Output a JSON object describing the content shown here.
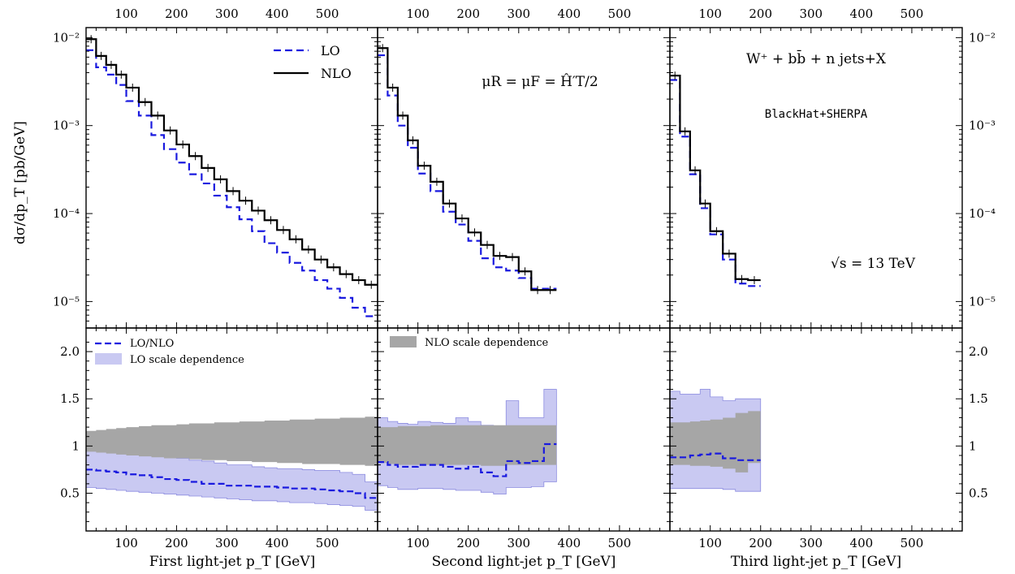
{
  "colors": {
    "lo": "#1a1adf",
    "nlo": "#000000",
    "lo_band": "#c9c9f2",
    "lo_band_edge": "#8c8ce0",
    "nlo_band": "#a6a6a6"
  },
  "annotations": {
    "process": "W⁺ + bb̄ + n jets+X",
    "scale": "μR = μF = Ĥ′T/2",
    "program": "BlackHat+SHERPA",
    "energy": "√s = 13 TeV"
  },
  "top_legend": {
    "lo": "LO",
    "nlo": "NLO"
  },
  "ratio_legend": {
    "lo_nlo": "LO/NLO",
    "lo_band": "LO scale dependence",
    "nlo_band": "NLO scale dependence"
  },
  "chart_data": [
    {
      "type": "line",
      "step": true,
      "xlabel": "First light-jet p_T [GeV]",
      "ylabel": "dσ/dp_T [pb/GeV]",
      "xlim": [
        20,
        600
      ],
      "ylim": [
        5e-06,
        0.013
      ],
      "yscale": "log",
      "x_ticks": [
        100,
        200,
        300,
        400,
        500
      ],
      "y_ticks": [
        "10⁻²",
        "10⁻³",
        "10⁻⁴",
        "10⁻⁵"
      ],
      "bin_edges": [
        20,
        40,
        60,
        80,
        100,
        125,
        150,
        175,
        200,
        225,
        250,
        275,
        300,
        325,
        350,
        375,
        400,
        425,
        450,
        475,
        500,
        525,
        550,
        575,
        600
      ],
      "series": [
        {
          "name": "LO",
          "style": "dashed",
          "values": [
            0.0072,
            0.0046,
            0.0038,
            0.0029,
            0.0019,
            0.0013,
            0.00078,
            0.00054,
            0.00038,
            0.00028,
            0.00022,
            0.00016,
            0.000118,
            8.6e-05,
            6.3e-05,
            4.6e-05,
            3.6e-05,
            2.75e-05,
            2.25e-05,
            1.75e-05,
            1.4e-05,
            1.1e-05,
            8.5e-06,
            6.8e-06
          ]
        },
        {
          "name": "NLO",
          "style": "solid",
          "values": [
            0.0096,
            0.0062,
            0.0049,
            0.0038,
            0.0027,
            0.00185,
            0.0013,
            0.00088,
            0.00061,
            0.00045,
            0.00033,
            0.000245,
            0.00018,
            0.00014,
            0.000108,
            8.4e-05,
            6.5e-05,
            5.1e-05,
            3.9e-05,
            3e-05,
            2.45e-05,
            2.05e-05,
            1.75e-05,
            1.55e-05
          ]
        }
      ],
      "ratio": {
        "ylim": [
          0.1,
          2.25
        ],
        "y_ticks": [
          0.5,
          1,
          1.5,
          2.0
        ],
        "lo_nlo": [
          0.75,
          0.74,
          0.73,
          0.72,
          0.7,
          0.69,
          0.67,
          0.65,
          0.64,
          0.62,
          0.6,
          0.6,
          0.58,
          0.58,
          0.57,
          0.57,
          0.56,
          0.55,
          0.55,
          0.54,
          0.53,
          0.52,
          0.5,
          0.45
        ],
        "lo_band_low": [
          0.56,
          0.55,
          0.54,
          0.53,
          0.52,
          0.51,
          0.5,
          0.49,
          0.48,
          0.47,
          0.46,
          0.45,
          0.44,
          0.43,
          0.42,
          0.42,
          0.41,
          0.4,
          0.4,
          0.39,
          0.38,
          0.37,
          0.36,
          0.32
        ],
        "lo_band_high": [
          1.04,
          1.02,
          1.0,
          0.99,
          0.96,
          0.94,
          0.92,
          0.89,
          0.87,
          0.85,
          0.84,
          0.82,
          0.8,
          0.8,
          0.78,
          0.77,
          0.76,
          0.76,
          0.75,
          0.74,
          0.74,
          0.72,
          0.7,
          0.62
        ],
        "nlo_band_low": [
          0.94,
          0.93,
          0.92,
          0.91,
          0.9,
          0.89,
          0.88,
          0.87,
          0.87,
          0.86,
          0.85,
          0.85,
          0.84,
          0.84,
          0.83,
          0.83,
          0.82,
          0.82,
          0.81,
          0.81,
          0.81,
          0.8,
          0.8,
          0.79
        ],
        "nlo_band_high": [
          1.16,
          1.17,
          1.18,
          1.19,
          1.2,
          1.21,
          1.22,
          1.22,
          1.23,
          1.24,
          1.24,
          1.25,
          1.25,
          1.26,
          1.26,
          1.27,
          1.27,
          1.28,
          1.28,
          1.29,
          1.29,
          1.3,
          1.3,
          1.31
        ]
      }
    },
    {
      "type": "line",
      "step": true,
      "xlabel": "Second light-jet p_T [GeV]",
      "xlim": [
        20,
        600
      ],
      "ylim": [
        5e-06,
        0.013
      ],
      "yscale": "log",
      "x_ticks": [
        100,
        200,
        300,
        400,
        500
      ],
      "bin_edges": [
        20,
        40,
        60,
        80,
        100,
        125,
        150,
        175,
        200,
        225,
        250,
        275,
        300,
        325,
        350,
        375
      ],
      "series": [
        {
          "name": "LO",
          "style": "dashed",
          "values": [
            0.0063,
            0.0022,
            0.001,
            0.00056,
            0.000285,
            0.00018,
            0.000105,
            7.5e-05,
            4.9e-05,
            3.1e-05,
            2.45e-05,
            2.25e-05,
            1.85e-05,
            1.4e-05,
            1.4e-05
          ]
        },
        {
          "name": "NLO",
          "style": "solid",
          "values": [
            0.0076,
            0.0027,
            0.0013,
            0.00068,
            0.00035,
            0.00023,
            0.00013,
            8.8e-05,
            6.1e-05,
            4.4e-05,
            3.3e-05,
            3.2e-05,
            2.2e-05,
            1.35e-05,
            1.35e-05
          ]
        }
      ],
      "ratio": {
        "lo_nlo": [
          0.83,
          0.8,
          0.78,
          0.78,
          0.8,
          0.8,
          0.78,
          0.76,
          0.78,
          0.72,
          0.68,
          0.84,
          0.82,
          0.84,
          1.02
        ],
        "lo_band_low": [
          0.58,
          0.56,
          0.54,
          0.54,
          0.55,
          0.55,
          0.54,
          0.53,
          0.53,
          0.51,
          0.49,
          0.56,
          0.56,
          0.57,
          0.62
        ],
        "lo_band_high": [
          1.3,
          1.26,
          1.24,
          1.23,
          1.26,
          1.25,
          1.24,
          1.3,
          1.26,
          1.22,
          1.18,
          1.48,
          1.3,
          1.3,
          1.6
        ],
        "nlo_band_low": [
          0.82,
          0.81,
          0.8,
          0.8,
          0.8,
          0.8,
          0.8,
          0.8,
          0.8,
          0.79,
          0.79,
          0.8,
          0.8,
          0.8,
          0.8
        ],
        "nlo_band_high": [
          1.2,
          1.2,
          1.21,
          1.21,
          1.21,
          1.22,
          1.22,
          1.22,
          1.22,
          1.22,
          1.22,
          1.22,
          1.22,
          1.22,
          1.22
        ]
      }
    },
    {
      "type": "line",
      "step": true,
      "xlabel": "Third light-jet p_T [GeV]",
      "xlim": [
        20,
        600
      ],
      "ylim": [
        5e-06,
        0.013
      ],
      "yscale": "log",
      "x_ticks": [
        100,
        200,
        300,
        400,
        500
      ],
      "y_ticks": [
        "10⁻²",
        "10⁻³",
        "10⁻⁴",
        "10⁻⁵"
      ],
      "bin_edges": [
        20,
        40,
        60,
        80,
        100,
        125,
        150,
        175,
        200
      ],
      "series": [
        {
          "name": "LO",
          "style": "dashed",
          "values": [
            0.0033,
            0.00075,
            0.00028,
            0.000115,
            5.8e-05,
            3e-05,
            1.6e-05,
            1.5e-05
          ]
        },
        {
          "name": "NLO",
          "style": "solid",
          "values": [
            0.0037,
            0.00086,
            0.00031,
            0.00013,
            6.3e-05,
            3.5e-05,
            1.8e-05,
            1.75e-05
          ]
        }
      ],
      "ratio": {
        "lo_nlo": [
          0.88,
          0.88,
          0.9,
          0.91,
          0.92,
          0.87,
          0.85,
          0.85
        ],
        "lo_band_low": [
          0.55,
          0.55,
          0.55,
          0.55,
          0.55,
          0.54,
          0.52,
          0.52
        ],
        "lo_band_high": [
          1.58,
          1.55,
          1.55,
          1.6,
          1.52,
          1.48,
          1.5,
          1.5
        ],
        "nlo_band_low": [
          0.8,
          0.8,
          0.79,
          0.79,
          0.78,
          0.76,
          0.72,
          0.82
        ],
        "nlo_band_high": [
          1.25,
          1.25,
          1.26,
          1.27,
          1.28,
          1.3,
          1.35,
          1.37
        ]
      }
    }
  ]
}
